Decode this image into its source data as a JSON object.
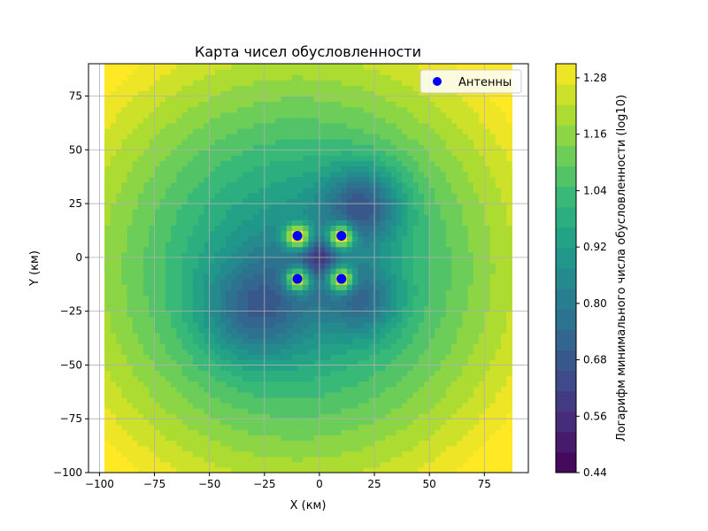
{
  "chart_data": {
    "type": "heatmap",
    "title": "Карта чисел обусловленности",
    "xlabel": "X (км)",
    "ylabel": "Y (км)",
    "colorbar_label": "Логарифм минимального числа обусловленности (log10)",
    "xlim": [
      -105,
      95
    ],
    "ylim": [
      -100,
      90
    ],
    "x_ticks": [
      -100,
      -75,
      -50,
      -25,
      0,
      25,
      50,
      75
    ],
    "y_ticks": [
      -100,
      -75,
      -50,
      -25,
      0,
      25,
      50,
      75
    ],
    "colorbar_range": [
      0.44,
      1.31
    ],
    "colorbar_ticks": [
      0.44,
      0.56,
      0.68,
      0.8,
      0.92,
      1.04,
      1.16,
      1.28
    ],
    "colormap": "viridis",
    "grid": true,
    "legend": {
      "placement": "top-right",
      "entries": [
        "Антенны"
      ]
    },
    "antennas": {
      "name": "Антенны",
      "color": "#0000ff",
      "points": [
        {
          "x": -10,
          "y": 10
        },
        {
          "x": 10,
          "y": 10
        },
        {
          "x": -10,
          "y": -10
        },
        {
          "x": 10,
          "y": -10
        }
      ]
    }
  }
}
